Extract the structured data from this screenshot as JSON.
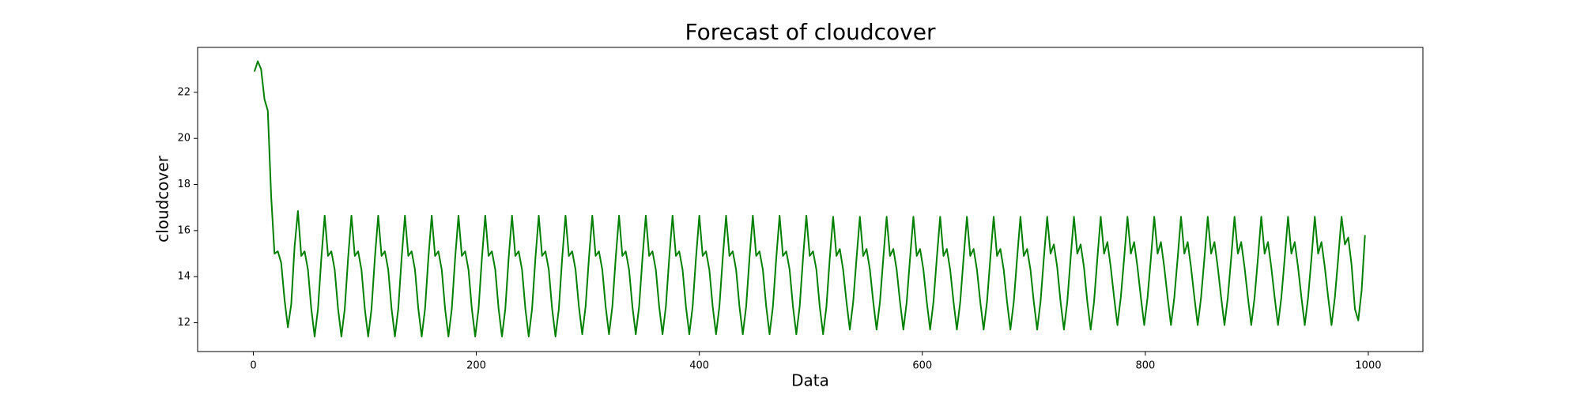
{
  "chart_data": {
    "type": "line",
    "title": "Forecast of cloudcover",
    "x_label": "Data",
    "y_label": "cloudcover",
    "xlim": [
      -49.95,
      1048.95
    ],
    "xticks": [
      0,
      200,
      400,
      600,
      800,
      1000
    ],
    "ylim": [
      10.75,
      23.95
    ],
    "yticks": [
      12,
      14,
      16,
      18,
      20,
      22
    ],
    "series": [
      {
        "color": "#008000",
        "x": [
          1,
          4,
          7,
          10,
          13,
          16,
          19,
          22,
          25,
          28,
          31,
          34,
          37,
          40,
          43,
          46,
          49,
          52,
          55,
          58,
          61,
          64,
          67,
          70,
          73,
          76,
          79,
          82,
          85,
          88,
          91,
          94,
          97,
          100,
          103,
          106,
          109,
          112,
          115,
          118,
          121,
          124,
          127,
          130,
          133,
          136,
          139,
          142,
          145,
          148,
          151,
          154,
          157,
          160,
          163,
          166,
          169,
          172,
          175,
          178,
          181,
          184,
          187,
          190,
          193,
          196,
          199,
          202,
          205,
          208,
          211,
          214,
          217,
          220,
          223,
          226,
          229,
          232,
          235,
          238,
          241,
          244,
          247,
          250,
          253,
          256,
          259,
          262,
          265,
          268,
          271,
          274,
          277,
          280,
          283,
          286,
          289,
          292,
          295,
          298,
          301,
          304,
          307,
          310,
          313,
          316,
          319,
          322,
          325,
          328,
          331,
          334,
          337,
          340,
          343,
          346,
          349,
          352,
          355,
          358,
          361,
          364,
          367,
          370,
          373,
          376,
          379,
          382,
          385,
          388,
          391,
          394,
          397,
          400,
          403,
          406,
          409,
          412,
          415,
          418,
          421,
          424,
          427,
          430,
          433,
          436,
          439,
          442,
          445,
          448,
          451,
          454,
          457,
          460,
          463,
          466,
          469,
          472,
          475,
          478,
          481,
          484,
          487,
          490,
          493,
          496,
          499,
          502,
          505,
          508,
          511,
          514,
          517,
          520,
          523,
          526,
          529,
          532,
          535,
          538,
          541,
          544,
          547,
          550,
          553,
          556,
          559,
          562,
          565,
          568,
          571,
          574,
          577,
          580,
          583,
          586,
          589,
          592,
          595,
          598,
          601,
          604,
          607,
          610,
          613,
          616,
          619,
          622,
          625,
          628,
          631,
          634,
          637,
          640,
          643,
          646,
          649,
          652,
          655,
          658,
          661,
          664,
          667,
          670,
          673,
          676,
          679,
          682,
          685,
          688,
          691,
          694,
          697,
          700,
          703,
          706,
          709,
          712,
          715,
          718,
          721,
          724,
          727,
          730,
          733,
          736,
          739,
          742,
          745,
          748,
          751,
          754,
          757,
          760,
          763,
          766,
          769,
          772,
          775,
          778,
          781,
          784,
          787,
          790,
          793,
          796,
          799,
          802,
          805,
          808,
          811,
          814,
          817,
          820,
          823,
          826,
          829,
          832,
          835,
          838,
          841,
          844,
          847,
          850,
          853,
          856,
          859,
          862,
          865,
          868,
          871,
          874,
          877,
          880,
          883,
          886,
          889,
          892,
          895,
          898,
          901,
          904,
          907,
          910,
          913,
          916,
          919,
          922,
          925,
          928,
          931,
          934,
          937,
          940,
          943,
          946,
          949,
          952,
          955,
          958,
          961,
          964,
          967,
          970,
          973,
          976,
          979,
          982,
          985,
          988,
          991,
          994,
          997
        ],
        "values": [
          22.9,
          23.35,
          23.0,
          21.7,
          21.2,
          17.5,
          15.0,
          15.1,
          14.6,
          13.0,
          11.8,
          12.8,
          15.3,
          16.85,
          14.9,
          15.1,
          14.3,
          12.6,
          11.4,
          12.6,
          14.8,
          16.65,
          14.9,
          15.1,
          14.3,
          12.6,
          11.4,
          12.6,
          14.8,
          16.65,
          14.9,
          15.1,
          14.3,
          12.6,
          11.4,
          12.6,
          14.8,
          16.65,
          14.9,
          15.1,
          14.3,
          12.6,
          11.4,
          12.6,
          14.8,
          16.65,
          14.9,
          15.1,
          14.3,
          12.6,
          11.4,
          12.6,
          14.8,
          16.65,
          14.9,
          15.1,
          14.3,
          12.6,
          11.4,
          12.6,
          14.8,
          16.65,
          14.9,
          15.1,
          14.3,
          12.6,
          11.4,
          12.6,
          14.8,
          16.65,
          14.9,
          15.1,
          14.3,
          12.6,
          11.4,
          12.6,
          14.8,
          16.65,
          14.9,
          15.1,
          14.3,
          12.6,
          11.4,
          12.6,
          14.8,
          16.65,
          14.9,
          15.1,
          14.3,
          12.6,
          11.4,
          12.6,
          14.8,
          16.65,
          14.9,
          15.1,
          14.3,
          12.7,
          11.5,
          12.7,
          14.8,
          16.65,
          14.9,
          15.1,
          14.3,
          12.7,
          11.5,
          12.7,
          14.8,
          16.65,
          14.9,
          15.1,
          14.3,
          12.7,
          11.5,
          12.7,
          14.8,
          16.65,
          14.9,
          15.1,
          14.3,
          12.7,
          11.5,
          12.7,
          14.8,
          16.65,
          14.9,
          15.1,
          14.3,
          12.7,
          11.5,
          12.7,
          14.8,
          16.65,
          14.9,
          15.1,
          14.3,
          12.7,
          11.5,
          12.7,
          14.8,
          16.65,
          14.9,
          15.1,
          14.3,
          12.7,
          11.5,
          12.7,
          14.8,
          16.65,
          14.9,
          15.1,
          14.3,
          12.7,
          11.5,
          12.7,
          14.8,
          16.65,
          14.9,
          15.1,
          14.3,
          12.7,
          11.5,
          12.7,
          14.8,
          16.65,
          14.9,
          15.1,
          14.3,
          12.7,
          11.5,
          12.7,
          14.8,
          16.6,
          14.9,
          15.2,
          14.3,
          12.9,
          11.7,
          12.9,
          14.8,
          16.6,
          14.9,
          15.2,
          14.3,
          12.9,
          11.7,
          12.9,
          14.8,
          16.6,
          14.9,
          15.2,
          14.3,
          12.9,
          11.7,
          12.9,
          14.8,
          16.6,
          14.9,
          15.2,
          14.3,
          12.9,
          11.7,
          12.9,
          14.8,
          16.6,
          14.9,
          15.2,
          14.3,
          12.9,
          11.7,
          12.9,
          14.8,
          16.6,
          14.9,
          15.2,
          14.3,
          12.9,
          11.7,
          12.9,
          14.8,
          16.6,
          14.9,
          15.2,
          14.3,
          12.9,
          11.7,
          12.9,
          14.8,
          16.6,
          14.9,
          15.2,
          14.3,
          12.9,
          11.7,
          12.9,
          14.8,
          16.6,
          15.0,
          15.4,
          14.4,
          12.9,
          11.7,
          12.9,
          14.8,
          16.6,
          15.0,
          15.4,
          14.4,
          12.9,
          11.7,
          12.9,
          14.8,
          16.6,
          15.0,
          15.5,
          14.4,
          13.1,
          11.9,
          13.1,
          14.8,
          16.6,
          15.0,
          15.5,
          14.4,
          13.1,
          11.9,
          13.1,
          14.8,
          16.6,
          15.0,
          15.5,
          14.4,
          13.1,
          11.9,
          13.1,
          14.8,
          16.6,
          15.0,
          15.5,
          14.4,
          13.1,
          11.9,
          13.1,
          14.8,
          16.6,
          15.0,
          15.5,
          14.4,
          13.1,
          11.9,
          13.1,
          14.8,
          16.6,
          15.0,
          15.5,
          14.4,
          13.1,
          11.9,
          13.1,
          14.8,
          16.6,
          15.0,
          15.5,
          14.4,
          13.1,
          11.9,
          13.1,
          14.8,
          16.6,
          15.0,
          15.5,
          14.4,
          13.1,
          11.9,
          13.1,
          14.8,
          16.6,
          15.0,
          15.5,
          14.4,
          13.1,
          11.9,
          13.1,
          14.8,
          16.6,
          15.4,
          15.7,
          14.5,
          12.6,
          12.1,
          13.4,
          15.8
        ]
      }
    ]
  }
}
